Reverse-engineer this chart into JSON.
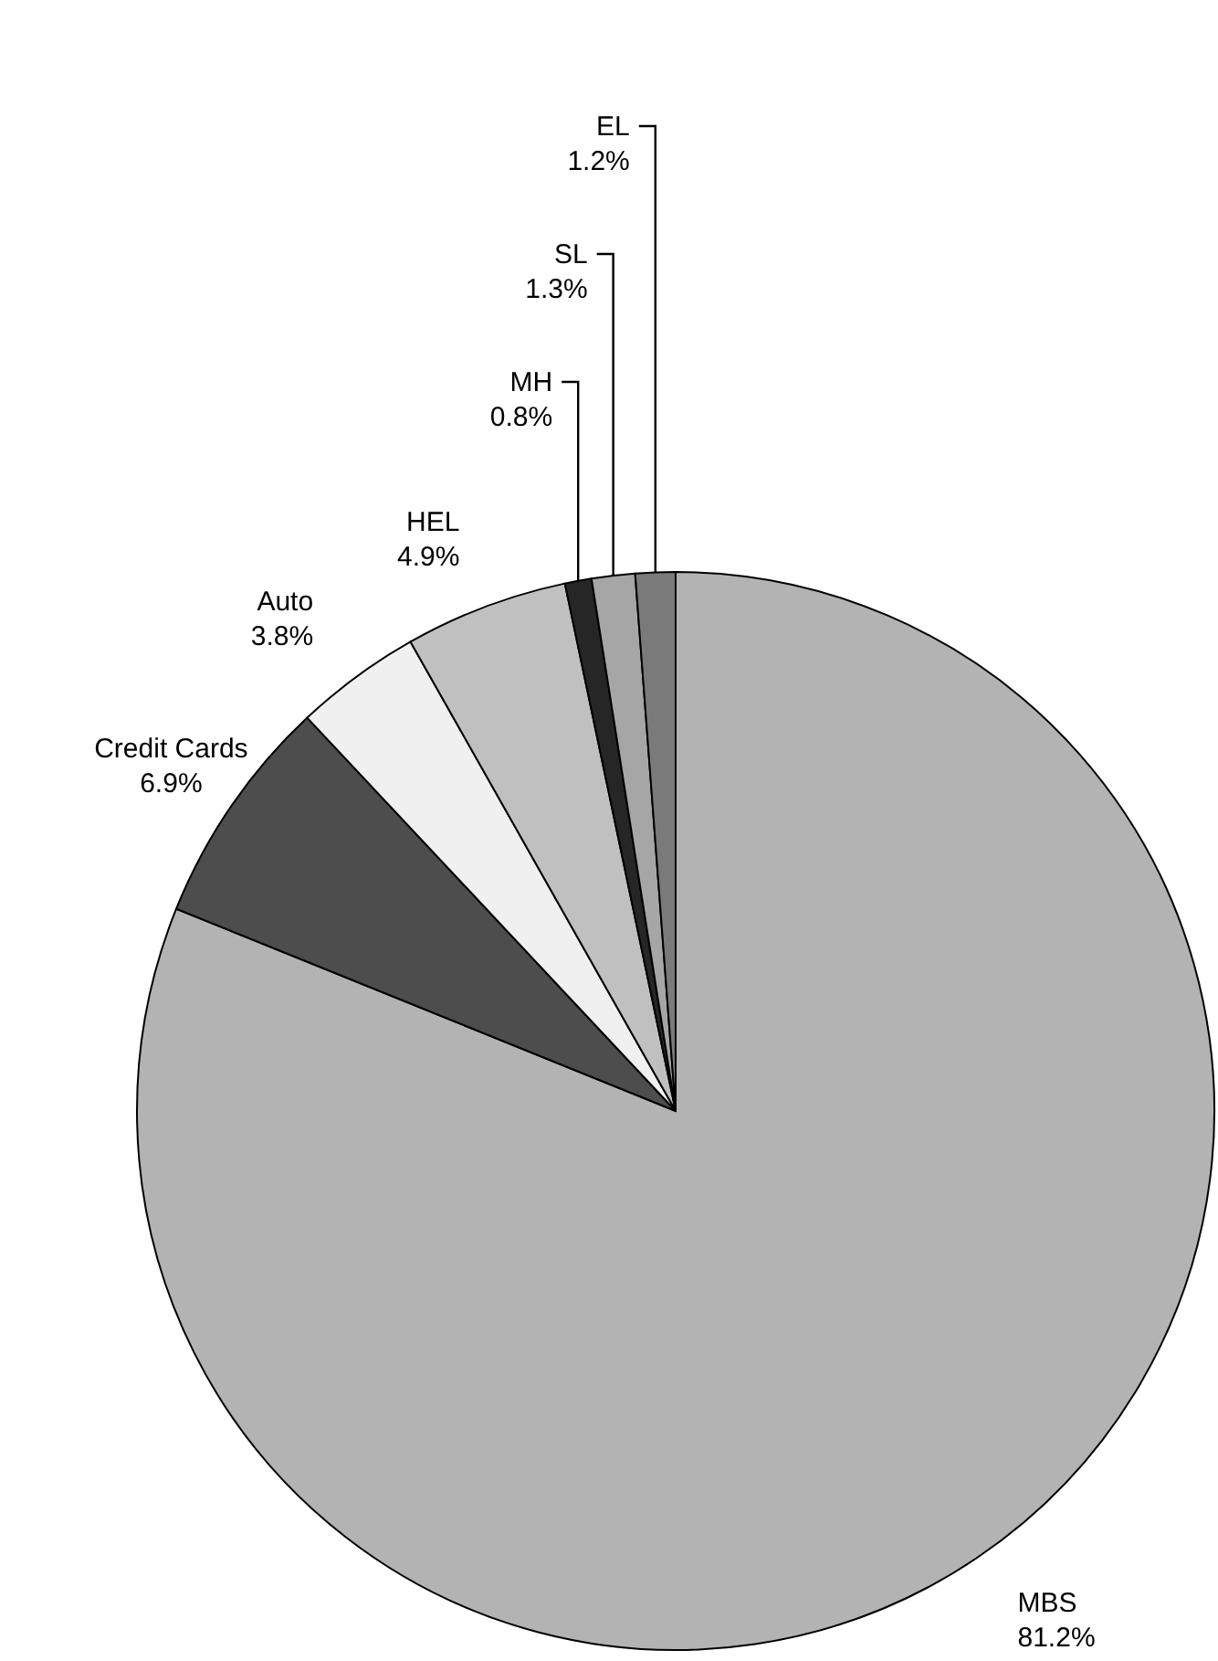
{
  "chart_data": {
    "type": "pie",
    "categories": [
      "MBS",
      "Credit Cards",
      "Auto",
      "HEL",
      "MH",
      "SL",
      "EL"
    ],
    "values": [
      81.2,
      6.9,
      3.8,
      4.9,
      0.8,
      1.3,
      1.2
    ],
    "value_labels": [
      "81.2%",
      "6.9%",
      "3.8%",
      "4.9%",
      "0.8%",
      "1.3%",
      "1.2%"
    ],
    "colors": [
      "#b3b3b3",
      "#4d4d4d",
      "#f0f0f0",
      "#c0c0c0",
      "#262626",
      "#a6a6a6",
      "#7a7a7a"
    ]
  }
}
